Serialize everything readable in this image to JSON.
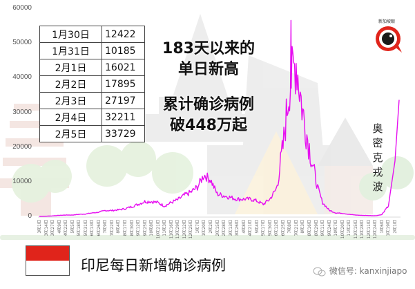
{
  "chart_data": {
    "type": "line",
    "title": "印尼每日新增确诊病例",
    "xlabel": "",
    "ylabel": "",
    "ylim": [
      0,
      60000
    ],
    "yticks": [
      0,
      10000,
      20000,
      30000,
      40000,
      50000,
      60000
    ],
    "grid": false,
    "line_color": "#e60ff0",
    "xtick_labels": [
      "3月1日",
      "3月14日",
      "3月27日",
      "4月9日",
      "4月22日",
      "5月5日",
      "5月18日",
      "5月31日",
      "6月13日",
      "6月26日",
      "7月9日",
      "7月22日",
      "8月4日",
      "8月17日",
      "8月30日",
      "9月12日",
      "9月25日",
      "10月8日",
      "10月21日",
      "11月3日",
      "11月16日",
      "11月29日",
      "12月12日",
      "12月25日",
      "1月7日",
      "1月20日",
      "2月2日",
      "2月15日",
      "2月28日",
      "3月13日",
      "3月26日",
      "4月8日",
      "4月21日",
      "5月4日",
      "5月17日",
      "5月30日",
      "6月12日",
      "6月25日",
      "7月8日",
      "7月21日",
      "8月3日",
      "8月16日",
      "8月29日",
      "9月11日",
      "9月24日",
      "10月7日",
      "10月20日",
      "11月2日",
      "11月15日",
      "11月28日",
      "12月11日",
      "12月24日",
      "1月6日",
      "1月19日",
      "2月1日"
    ],
    "series": [
      {
        "name": "印尼每日新增确诊病例",
        "x": [
          "3月1日",
          "3月14日",
          "3月27日",
          "4月9日",
          "4月22日",
          "5月5日",
          "5月18日",
          "5月31日",
          "6月13日",
          "6月26日",
          "7月9日",
          "7月22日",
          "8月4日",
          "8月17日",
          "8月30日",
          "9月12日",
          "9月25日",
          "10月8日",
          "10月21日",
          "11月3日",
          "11月16日",
          "11月29日",
          "12月12日",
          "12月25日",
          "1月7日",
          "1月20日",
          "2月2日",
          "2月15日",
          "2月28日",
          "3月13日",
          "3月26日",
          "4月8日",
          "4月21日",
          "5月4日",
          "5月17日",
          "5月30日",
          "6月12日",
          "6月25日",
          "7月8日",
          "7月21日",
          "8月3日",
          "8月16日",
          "8月29日",
          "9月11日",
          "9月24日",
          "10月7日",
          "10月20日",
          "11月2日",
          "11月15日",
          "11月28日",
          "12月11日",
          "12月24日",
          "1月6日",
          "1月19日",
          "2月1日",
          "2月5日"
        ],
        "values": [
          0,
          50,
          150,
          300,
          400,
          400,
          600,
          700,
          1000,
          1200,
          1700,
          1700,
          1900,
          2200,
          2800,
          3500,
          4300,
          4300,
          4000,
          3000,
          4000,
          4800,
          6100,
          7000,
          8500,
          12000,
          10600,
          6500,
          6000,
          5500,
          5000,
          5000,
          5000,
          4500,
          3500,
          5000,
          8000,
          20000,
          38000,
          45000,
          30000,
          20000,
          10000,
          4000,
          1800,
          1000,
          900,
          600,
          400,
          300,
          250,
          200,
          500,
          3000,
          16021,
          33729
        ]
      }
    ],
    "legend": "none",
    "annotations": [
      {
        "text": "奥密克戎波",
        "position": "near right edge, vertical"
      },
      {
        "text": "183天以来的单日新高",
        "position": "upper center"
      },
      {
        "text": "累计确诊病例破448万起",
        "position": "upper center"
      }
    ]
  },
  "yaxis": {
    "labels": [
      "60000",
      "50000",
      "40000",
      "30000",
      "20000",
      "10000",
      "0"
    ]
  },
  "table": {
    "rows": [
      {
        "date": "1月30日",
        "value": "12422"
      },
      {
        "date": "1月31日",
        "value": "10185"
      },
      {
        "date": "2月1日",
        "value": "16021"
      },
      {
        "date": "2月2日",
        "value": "17895"
      },
      {
        "date": "2月3日",
        "value": "27197"
      },
      {
        "date": "2月4日",
        "value": "32211"
      },
      {
        "date": "2月5日",
        "value": "33729"
      }
    ]
  },
  "headline": {
    "line1": "183天以来的",
    "line2": "单日新高",
    "line3": "累计确诊病例",
    "line4": "破448万起"
  },
  "omicron_label": "奥密克戎波",
  "footer": {
    "title": "印尼每日新增确诊病例",
    "flag": {
      "top_color": "#e0241b",
      "bottom_color": "#ffffff"
    },
    "wechat": "微信号: kanxinjiapo"
  },
  "logo": {
    "text": "新加坡眼",
    "ring_color": "#e0241b"
  }
}
